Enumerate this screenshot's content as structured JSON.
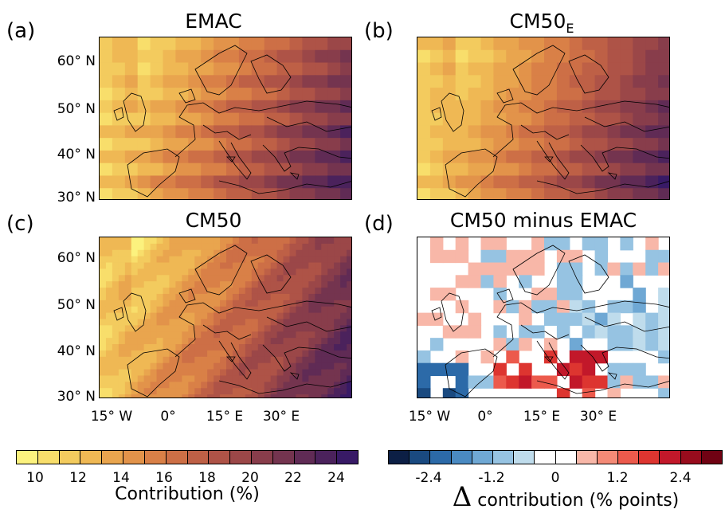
{
  "panels": {
    "a": {
      "label": "(a)",
      "title": "EMAC"
    },
    "b": {
      "label": "(b)",
      "title_base": "CM50",
      "title_sub": "E"
    },
    "c": {
      "label": "(c)",
      "title": "CM50"
    },
    "d": {
      "label": "(d)",
      "title": "CM50 minus EMAC"
    }
  },
  "axes": {
    "lat_labels": [
      "60° N",
      "50° N",
      "40° N",
      "30° N"
    ],
    "lon_labels": [
      "15° W",
      "0°",
      "15° E",
      "30° E"
    ]
  },
  "colorbar_left": {
    "ticks": [
      "10",
      "12",
      "14",
      "16",
      "18",
      "20",
      "22",
      "24"
    ],
    "title": "Contribution (%)",
    "colors": [
      "#fcf27e",
      "#f8de6b",
      "#f3cb5e",
      "#efb854",
      "#e9a54e",
      "#e2934a",
      "#d98047",
      "#cd6f46",
      "#be6046",
      "#ae5347",
      "#9b4748",
      "#883d4b",
      "#74344f",
      "#602b55",
      "#4b225c",
      "#381a66"
    ]
  },
  "colorbar_right": {
    "ticks": [
      "-2.4",
      "-1.2",
      "0",
      "1.2",
      "2.4"
    ],
    "title_symbol": "Δ",
    "title": "contribution (% points)",
    "colors": [
      "#0c1f45",
      "#1a4a80",
      "#2c6aa8",
      "#4a8ac2",
      "#6fa8d4",
      "#96c3e2",
      "#bfdcec",
      "#ffffff",
      "#ffffff",
      "#f8b7a8",
      "#f48a76",
      "#ec5a4c",
      "#dd3530",
      "#c2182a",
      "#980c1d",
      "#700213"
    ]
  }
}
